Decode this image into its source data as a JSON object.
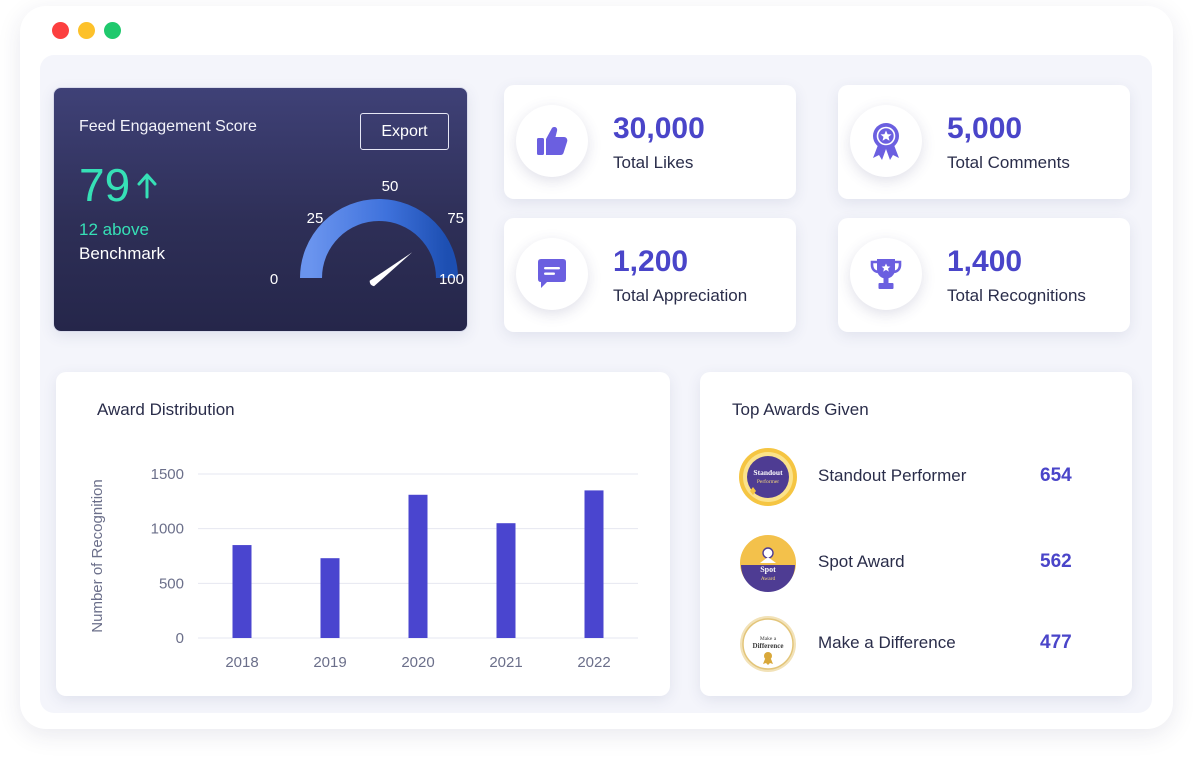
{
  "engagement": {
    "title": "Feed Engagement Score",
    "export_label": "Export",
    "score": "79",
    "score_value": 79,
    "above": "12 above",
    "benchmark": "Benchmark",
    "gauge_labels": [
      "0",
      "25",
      "50",
      "75",
      "100"
    ]
  },
  "stats": [
    {
      "value": "30,000",
      "label": "Total Likes",
      "icon": "thumbs-up-icon"
    },
    {
      "value": "5,000",
      "label": "Total Comments",
      "icon": "badge-icon"
    },
    {
      "value": "1,200",
      "label": "Total Appreciation",
      "icon": "speech-bubble-icon"
    },
    {
      "value": "1,400",
      "label": "Total Recognitions",
      "icon": "trophy-icon"
    }
  ],
  "distribution": {
    "title": "Award Distribution"
  },
  "chart_data": {
    "type": "bar",
    "categories": [
      "2018",
      "2019",
      "2020",
      "2021",
      "2022"
    ],
    "values": [
      850,
      730,
      1310,
      1050,
      1350
    ],
    "ylabel": "Number of Recognition",
    "xlabel": "",
    "yticks": [
      0,
      500,
      1000,
      1500
    ],
    "ylim": [
      0,
      1500
    ],
    "grid": true,
    "bar_color": "#4a45cf"
  },
  "top_awards": {
    "title": "Top Awards Given",
    "items": [
      {
        "name": "Standout Performer",
        "count": "654",
        "badge_text": [
          "Standout",
          "Performer"
        ]
      },
      {
        "name": "Spot Award",
        "count": "562",
        "badge_text": [
          "Spot",
          "Award"
        ]
      },
      {
        "name": "Make a Difference",
        "count": "477",
        "badge_text": [
          "Make a",
          "Difference"
        ]
      }
    ]
  },
  "colors": {
    "accent": "#4a45c9",
    "score_green": "#36e0b6",
    "icon_purple": "#6b5fe0"
  }
}
